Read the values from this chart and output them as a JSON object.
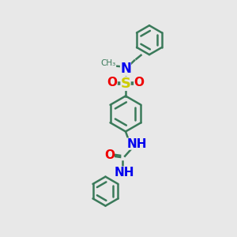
{
  "bg_color": "#e8e8e8",
  "bond_color": "#3a7a5a",
  "N_color": "#0000ee",
  "O_color": "#ee0000",
  "S_color": "#cccc00",
  "line_width": 1.8,
  "figsize": [
    3.0,
    3.0
  ],
  "dpi": 100,
  "xlim": [
    0,
    10
  ],
  "ylim": [
    0,
    10
  ]
}
